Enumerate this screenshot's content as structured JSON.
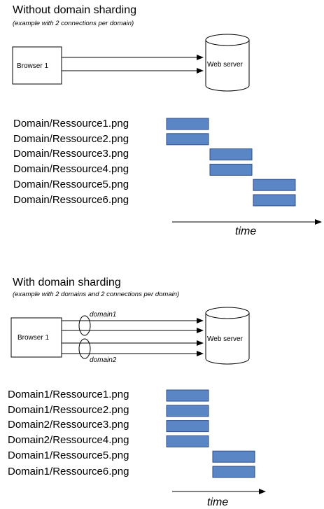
{
  "section1": {
    "title": "Without domain sharding",
    "subtitle": "(example with 2 connections per domain)",
    "browser_label": "Browser 1",
    "server_label": "Web server",
    "resources": [
      {
        "label": "Domain/Ressource1.png",
        "slot": 0
      },
      {
        "label": "Domain/Ressource2.png",
        "slot": 0
      },
      {
        "label": "Domain/Ressource3.png",
        "slot": 1
      },
      {
        "label": "Domain/Ressource4.png",
        "slot": 1
      },
      {
        "label": "Domain/Ressource5.png",
        "slot": 2
      },
      {
        "label": "Domain/Ressource6.png",
        "slot": 2
      }
    ],
    "time_label": "time"
  },
  "section2": {
    "title": "With domain sharding",
    "subtitle": "(example with 2 domains and 2 connections per domain)",
    "browser_label": "Browser 1",
    "server_label": "Web server",
    "domain_labels": [
      "domain1",
      "domain2"
    ],
    "resources": [
      {
        "label": "Domain1/Ressource1.png",
        "slot": 0
      },
      {
        "label": "Domain1/Ressource2.png",
        "slot": 0
      },
      {
        "label": "Domain2/Ressource3.png",
        "slot": 0
      },
      {
        "label": "Domain2/Ressource4.png",
        "slot": 0
      },
      {
        "label": "Domain1/Ressource5.png",
        "slot": 1
      },
      {
        "label": "Domain1/Ressource6.png",
        "slot": 1
      }
    ],
    "time_label": "time"
  },
  "colors": {
    "bar_fill": "#5b86c6",
    "bar_stroke": "#2f4f86"
  }
}
